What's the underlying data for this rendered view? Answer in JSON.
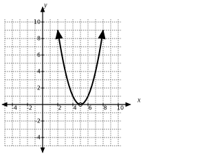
{
  "chart_data": {
    "type": "line",
    "x_label": "x",
    "y_label": "y",
    "xlim": [
      -5,
      10
    ],
    "ylim": [
      -5,
      10
    ],
    "xticks": [
      -4,
      -2,
      2,
      4,
      6,
      8,
      10
    ],
    "yticks": [
      -4,
      -2,
      2,
      4,
      6,
      8,
      10
    ],
    "xgrid": [
      -5,
      -4,
      -3,
      -2,
      -1,
      0,
      1,
      2,
      3,
      4,
      5,
      6,
      7,
      8,
      9,
      10
    ],
    "ygrid": [
      -5,
      -4,
      -3,
      -2,
      -1,
      0,
      1,
      2,
      3,
      4,
      5,
      6,
      7,
      8,
      9,
      10
    ],
    "grid": true,
    "series": [
      {
        "color": "#000000",
        "x": [
          2,
          2.25,
          2.5,
          2.75,
          3,
          3.25,
          3.5,
          3.75,
          4,
          4.25,
          4.5,
          4.75,
          5,
          5.25,
          5.5,
          5.75,
          6,
          6.25,
          6.5,
          6.75,
          7,
          7.25,
          7.5,
          7.75,
          8
        ],
        "values": [
          9,
          7.5625,
          6.25,
          5.0625,
          4,
          3.0625,
          2.25,
          1.5625,
          1,
          0.5625,
          0.25,
          0.0625,
          0,
          0.0625,
          0.25,
          0.5625,
          1,
          1.5625,
          2.25,
          3.0625,
          4,
          5.0625,
          6.25,
          7.5625,
          9
        ]
      }
    ]
  }
}
